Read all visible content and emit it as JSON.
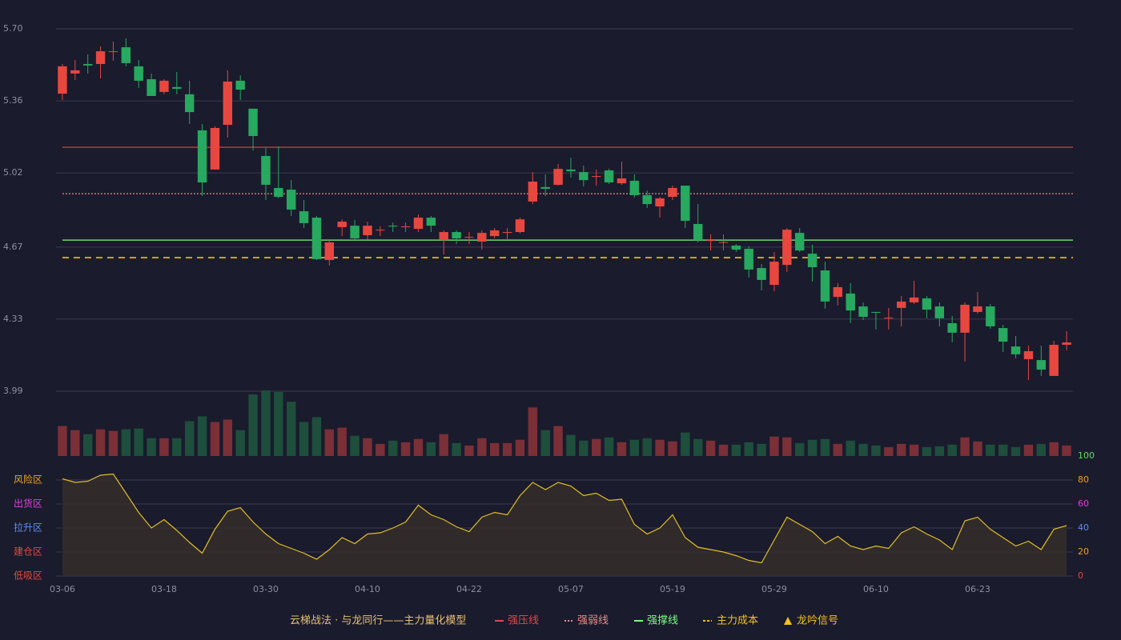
{
  "chart_data": {
    "type": "candlestick",
    "categories": [
      "03-06",
      null,
      null,
      null,
      null,
      null,
      null,
      null,
      "03-18",
      null,
      null,
      null,
      null,
      null,
      null,
      null,
      "03-30",
      null,
      null,
      null,
      null,
      null,
      null,
      null,
      "04-10",
      null,
      null,
      null,
      null,
      null,
      null,
      null,
      "04-22",
      null,
      null,
      null,
      null,
      null,
      null,
      null,
      "05-07",
      null,
      null,
      null,
      null,
      null,
      null,
      null,
      "05-19",
      null,
      null,
      null,
      null,
      null,
      null,
      null,
      "05-29",
      null,
      null,
      null,
      null,
      null,
      null,
      null,
      "06-10",
      null,
      null,
      null,
      null,
      null,
      null,
      null,
      "06-23",
      null,
      null,
      null,
      null,
      null,
      null,
      null
    ],
    "open": [
      5.394,
      5.489,
      5.534,
      5.534,
      5.59,
      5.613,
      5.523,
      5.462,
      5.402,
      5.425,
      5.391,
      5.221,
      5.036,
      5.247,
      5.455,
      5.323,
      5.1,
      4.949,
      4.941,
      4.839,
      4.809,
      4.609,
      4.764,
      4.771,
      4.726,
      4.749,
      4.771,
      4.764,
      4.756,
      4.809,
      4.703,
      4.741,
      4.715,
      4.696,
      4.722,
      4.737,
      4.741,
      4.885,
      4.953,
      4.964,
      5.036,
      5.024,
      5.002,
      5.032,
      4.971,
      4.983,
      4.915,
      4.862,
      4.907,
      4.96,
      4.779,
      4.7,
      4.69,
      4.677,
      4.662,
      4.571,
      4.492,
      4.586,
      4.737,
      4.639,
      4.56,
      4.435,
      4.451,
      4.39,
      4.364,
      4.334,
      4.383,
      4.409,
      4.428,
      4.39,
      4.311,
      4.266,
      4.364,
      4.39,
      4.288,
      4.201,
      4.141,
      4.137,
      4.062,
      4.209
    ],
    "high": [
      5.534,
      5.553,
      5.579,
      5.617,
      5.64,
      5.655,
      5.553,
      5.489,
      5.462,
      5.496,
      5.455,
      5.251,
      5.24,
      5.504,
      5.481,
      5.323,
      5.138,
      5.145,
      4.986,
      4.892,
      4.817,
      4.703,
      4.801,
      4.798,
      4.79,
      4.768,
      4.786,
      4.786,
      4.824,
      4.817,
      4.749,
      4.749,
      4.741,
      4.749,
      4.76,
      4.76,
      4.809,
      5.024,
      5.013,
      5.062,
      5.092,
      5.055,
      5.036,
      5.039,
      5.073,
      5.013,
      4.937,
      4.907,
      4.96,
      4.96,
      4.873,
      4.73,
      4.73,
      4.684,
      4.673,
      4.59,
      4.647,
      4.76,
      4.76,
      4.681,
      4.601,
      4.5,
      4.5,
      4.409,
      4.364,
      4.383,
      4.439,
      4.511,
      4.439,
      4.409,
      4.345,
      4.409,
      4.458,
      4.401,
      4.303,
      4.25,
      4.205,
      4.205,
      4.228,
      4.273
    ],
    "low": [
      5.364,
      5.458,
      5.489,
      5.466,
      5.549,
      5.523,
      5.421,
      5.383,
      5.391,
      5.391,
      5.251,
      4.911,
      5.036,
      5.187,
      5.364,
      5.126,
      4.892,
      4.9,
      4.817,
      4.76,
      4.609,
      4.583,
      4.722,
      4.703,
      4.703,
      4.722,
      4.741,
      4.741,
      4.741,
      4.741,
      4.635,
      4.684,
      4.684,
      4.658,
      4.711,
      4.703,
      4.734,
      4.873,
      4.911,
      4.96,
      4.998,
      4.956,
      4.96,
      4.968,
      4.964,
      4.904,
      4.854,
      4.809,
      4.892,
      4.76,
      4.692,
      4.654,
      4.654,
      4.647,
      4.526,
      4.466,
      4.462,
      4.552,
      4.647,
      4.507,
      4.379,
      4.394,
      4.311,
      4.326,
      4.281,
      4.281,
      4.296,
      4.401,
      4.334,
      4.296,
      4.221,
      4.13,
      4.356,
      4.285,
      4.175,
      4.145,
      4.043,
      4.062,
      4.062,
      4.183
    ],
    "close": [
      5.523,
      5.504,
      5.527,
      5.594,
      5.594,
      5.538,
      5.455,
      5.383,
      5.455,
      5.417,
      5.307,
      4.975,
      5.232,
      5.451,
      5.413,
      5.194,
      4.964,
      4.907,
      4.847,
      4.783,
      4.613,
      4.692,
      4.79,
      4.711,
      4.771,
      4.752,
      4.767,
      4.768,
      4.809,
      4.771,
      4.741,
      4.711,
      4.718,
      4.737,
      4.749,
      4.741,
      4.801,
      4.979,
      4.945,
      5.039,
      5.028,
      4.986,
      5.005,
      4.975,
      4.994,
      4.915,
      4.873,
      4.9,
      4.949,
      4.794,
      4.703,
      4.703,
      4.694,
      4.658,
      4.564,
      4.515,
      4.601,
      4.752,
      4.654,
      4.575,
      4.413,
      4.481,
      4.371,
      4.341,
      4.36,
      4.337,
      4.413,
      4.432,
      4.375,
      4.334,
      4.266,
      4.398,
      4.39,
      4.296,
      4.224,
      4.164,
      4.179,
      4.092,
      4.209,
      4.22
    ],
    "up_color": "#e8473f",
    "down_color": "#27a95f",
    "ylim": [
      3.99,
      5.7
    ],
    "yticks": [
      {
        "value": 5.7,
        "label": "5.70"
      },
      5.36,
      5.02,
      4.67,
      4.33,
      3.99
    ],
    "levels": [
      {
        "name": "强压线",
        "value": 5.141,
        "color": "#e2474b",
        "style": "solid"
      },
      {
        "name": "强弱线",
        "value": 4.922,
        "color": "#f08a8a",
        "style": "dotted"
      },
      {
        "name": "强撑线",
        "value": 4.703,
        "color": "#7dfa82",
        "style": "solid"
      },
      {
        "name": "主力成本",
        "value": 4.62,
        "color": "#f5c21b",
        "style": "dashed"
      }
    ],
    "signal_name": "龙吟信号",
    "signal_color": "#f5c21b",
    "legend_title": "云梯战法 · 与龙同行——主力量化模型",
    "volume": {
      "type": "bar",
      "up_color": "#7b2f37",
      "down_color": "#1e4e3c",
      "values": [
        37,
        32,
        27,
        33,
        31,
        33,
        34,
        22,
        22,
        22,
        43,
        49,
        42,
        45,
        32,
        76,
        81,
        79,
        67,
        42,
        48,
        33,
        35,
        25,
        22,
        15,
        19,
        17,
        21,
        17,
        27,
        16,
        13,
        22,
        16,
        16,
        20,
        60,
        32,
        37,
        26,
        19,
        21,
        23,
        17,
        20,
        22,
        20,
        18,
        29,
        21,
        19,
        14,
        14,
        17,
        15,
        24,
        23,
        16,
        20,
        21,
        15,
        19,
        15,
        13,
        11,
        15,
        14,
        11,
        12,
        14,
        23,
        18,
        14,
        14,
        11,
        14,
        15,
        17,
        13
      ]
    },
    "indicator": {
      "type": "line",
      "color": "#e1bd2a",
      "fill": "#332e2a",
      "values": [
        81,
        78,
        79,
        84,
        85,
        69,
        53,
        40,
        47,
        38,
        28,
        19,
        39,
        54,
        57,
        45,
        35,
        27,
        23,
        19,
        14,
        22,
        32,
        27,
        35,
        36,
        40,
        45,
        59,
        51,
        47,
        41,
        37,
        49,
        53,
        51,
        67,
        78,
        72,
        78,
        75,
        67,
        69,
        63,
        64,
        43,
        35,
        40,
        51,
        32,
        24,
        22,
        20,
        17,
        13,
        11,
        30,
        49,
        43,
        37,
        27,
        33,
        25,
        22,
        25,
        23,
        36,
        41,
        35,
        30,
        22,
        46,
        49,
        39,
        32,
        25,
        29,
        22,
        39,
        42
      ],
      "ylim": [
        0,
        100
      ],
      "yticks": [
        0,
        20,
        40,
        60,
        80,
        100
      ],
      "ytick_colors": [
        "#e8473f",
        "#f0a020",
        "#5b8ff0",
        "#e040e0",
        "#f0a020",
        "#5be05b"
      ],
      "zones": [
        {
          "label": "风险区",
          "value": 80,
          "color": "#f0a020"
        },
        {
          "label": "出货区",
          "value": 60,
          "color": "#e040e0"
        },
        {
          "label": "拉升区",
          "value": 40,
          "color": "#5b8ff0"
        },
        {
          "label": "建仓区",
          "value": 20,
          "color": "#e8473f"
        },
        {
          "label": "低吸区",
          "value": 0,
          "color": "#e8473f"
        }
      ]
    }
  }
}
